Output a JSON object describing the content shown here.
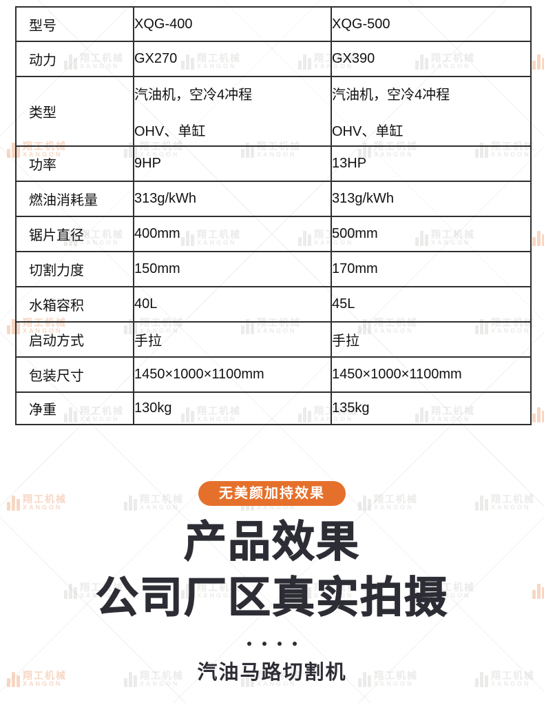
{
  "page": {
    "background_color": "#ffffff",
    "accent_color": "#E5702B",
    "title_color": "#2D2D35",
    "table_border_color": "#2e2e2e"
  },
  "spec_table": {
    "rows": [
      {
        "label": "型号",
        "v1": "XQG-400",
        "v2": "XQG-500"
      },
      {
        "label": "动力",
        "v1": "GX270",
        "v2": "GX390"
      },
      {
        "label": "类型",
        "v1a": "汽油机，空冷4冲程",
        "v1b": "OHV、单缸",
        "v2a": "汽油机，空冷4冲程",
        "v2b": "OHV、单缸"
      },
      {
        "label": "功率",
        "v1": "9HP",
        "v2": "13HP"
      },
      {
        "label": "燃油消耗量",
        "v1": "313g/kWh",
        "v2": "313g/kWh"
      },
      {
        "label": "锯片直径",
        "v1": "400mm",
        "v2": "500mm"
      },
      {
        "label": "切割力度",
        "v1": "150mm",
        "v2": "170mm"
      },
      {
        "label": "水箱容积",
        "v1": "40L",
        "v2": "45L"
      },
      {
        "label": "启动方式",
        "v1": "手拉",
        "v2": "手拉"
      },
      {
        "label": "包装尺寸",
        "v1": "1450×1000×1100mm",
        "v2": "1450×1000×1100mm"
      },
      {
        "label": "净重",
        "v1": "130kg",
        "v2": "135kg"
      }
    ]
  },
  "effect_section": {
    "badge": "无美颜加持效果",
    "title_line1": "产品效果",
    "title_line2": "公司厂区真实拍摄",
    "subtitle": "汽油马路切割机",
    "dots_count": 4
  },
  "watermark": {
    "brand_cn": "翔工机械",
    "brand_en": "XANGON"
  }
}
